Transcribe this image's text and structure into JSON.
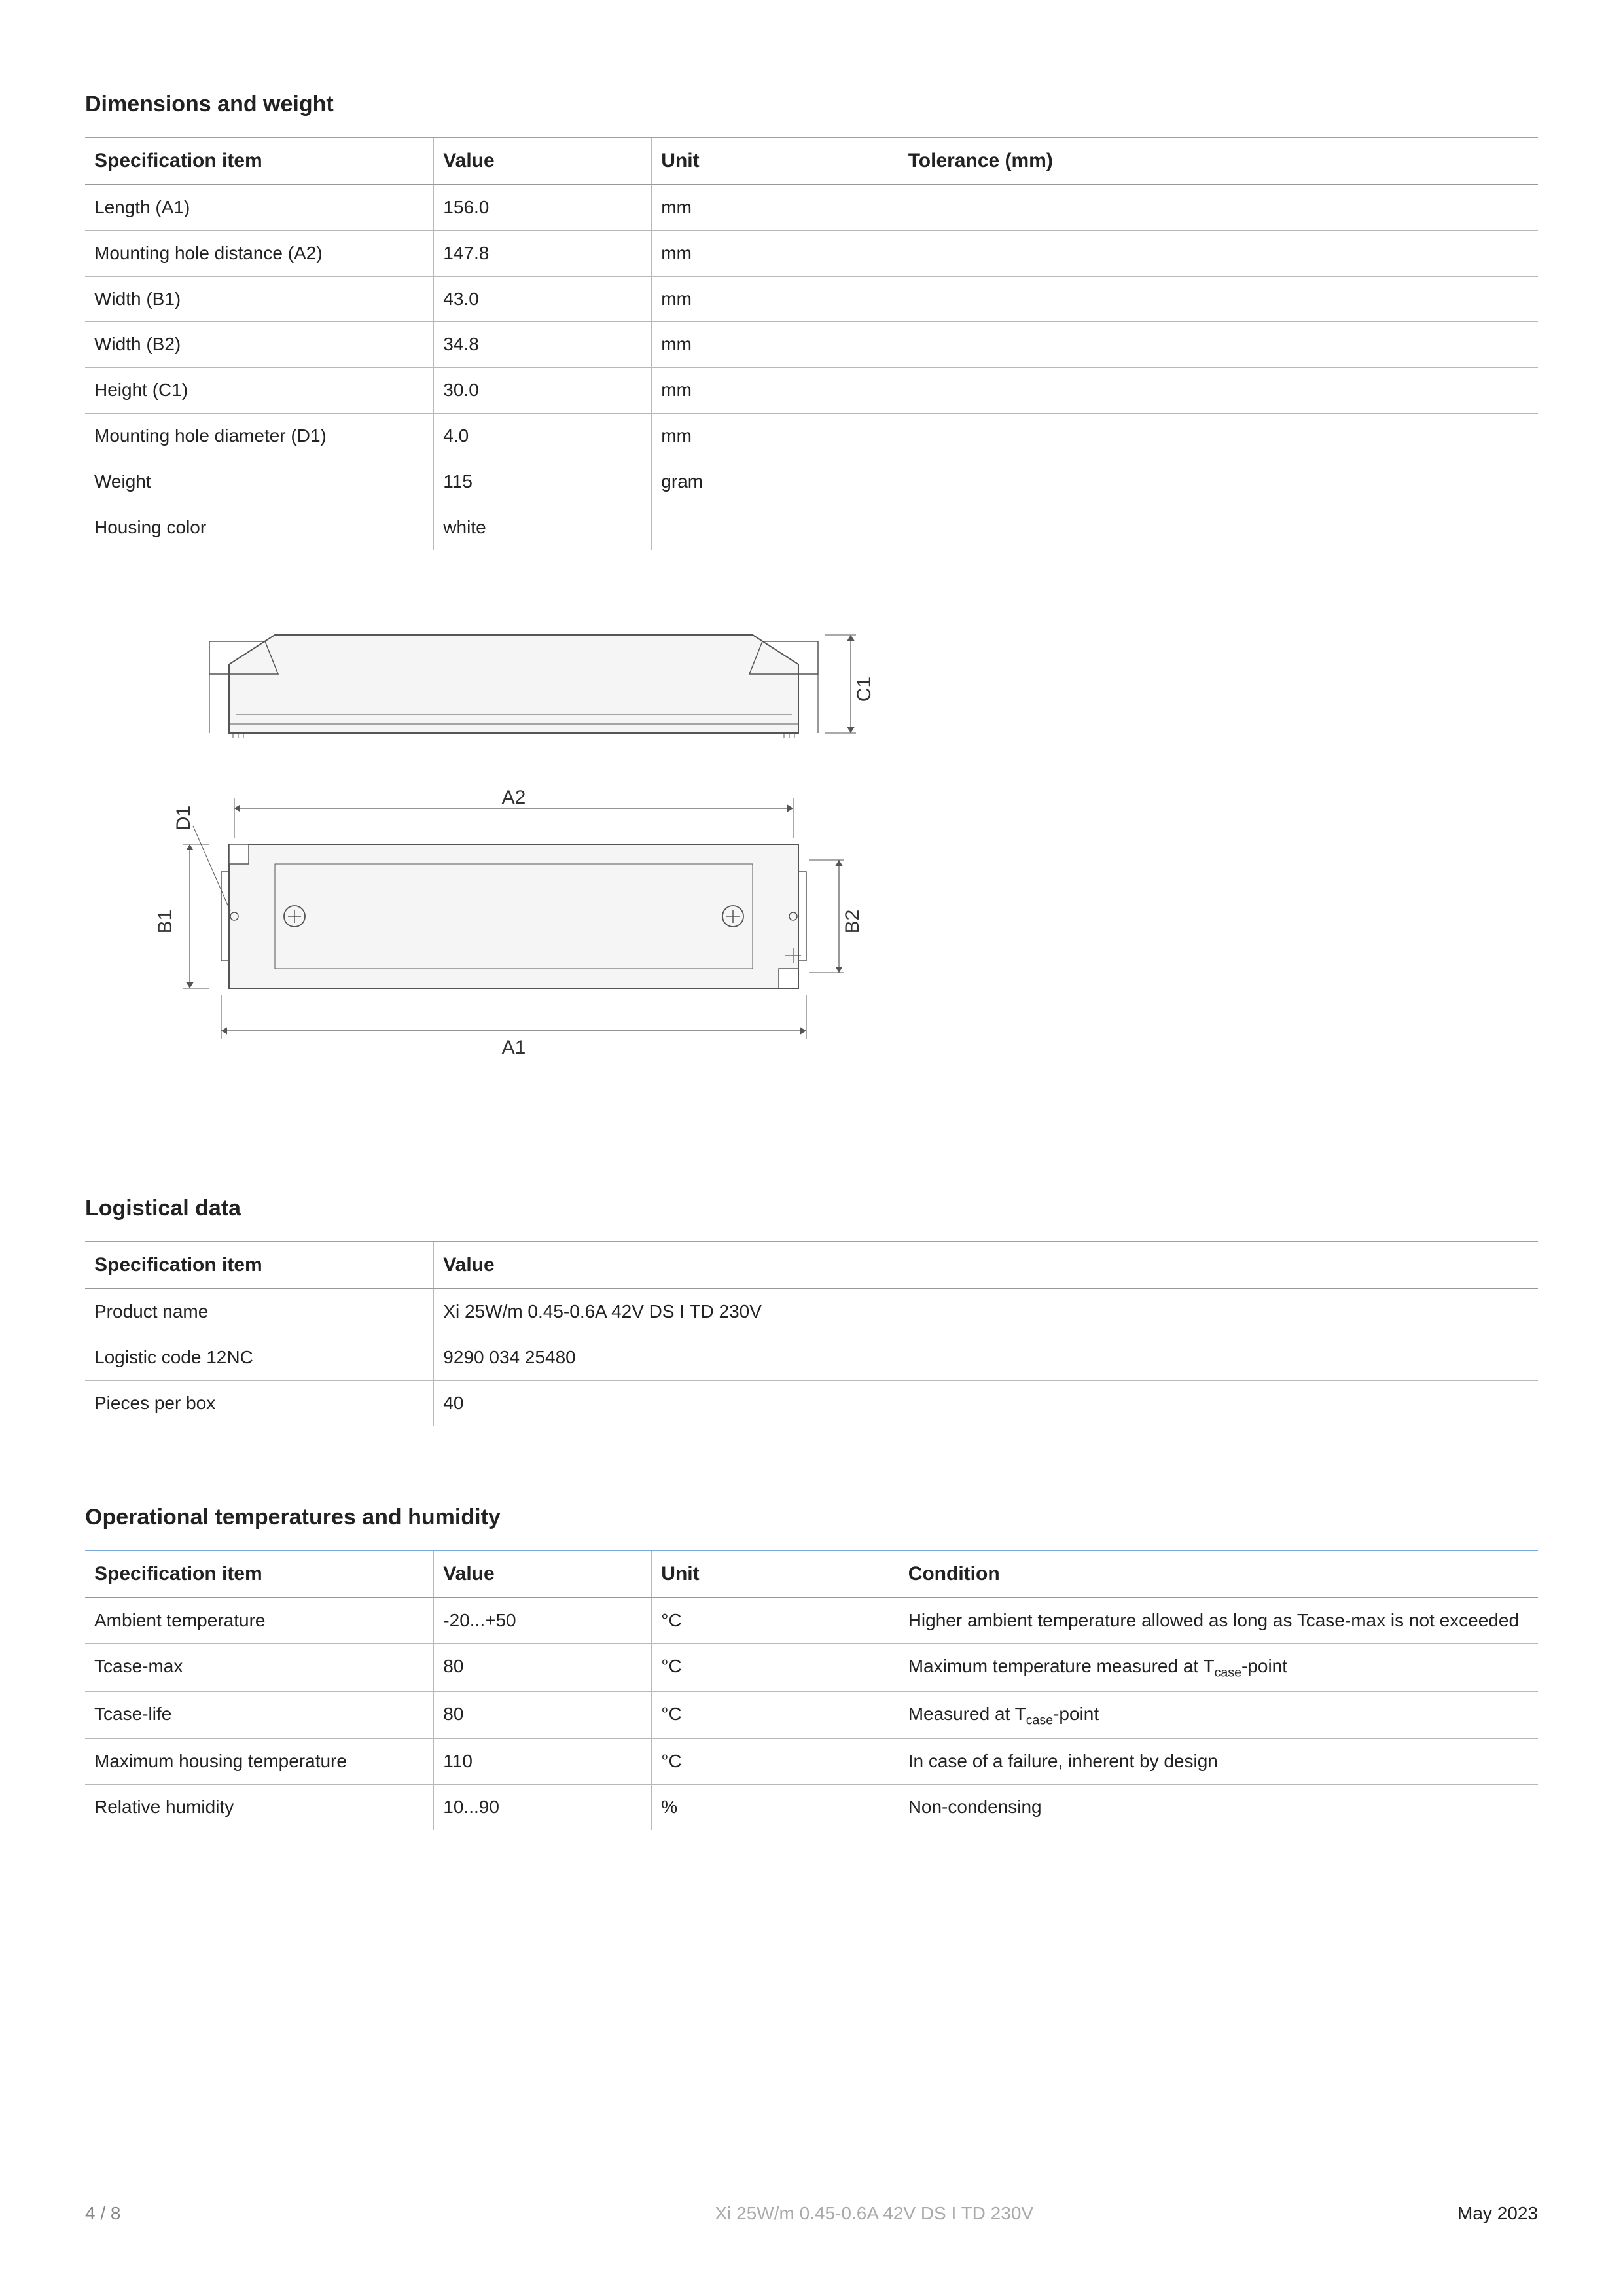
{
  "sections": {
    "dimensions": {
      "title": "Dimensions and weight",
      "columns": [
        "Specification item",
        "Value",
        "Unit",
        "Tolerance (mm)"
      ],
      "col_widths": [
        "24%",
        "15%",
        "17%",
        "44%"
      ],
      "rows": [
        [
          "Length (A1)",
          "156.0",
          "mm",
          ""
        ],
        [
          "Mounting hole distance (A2)",
          "147.8",
          "mm",
          ""
        ],
        [
          "Width (B1)",
          "43.0",
          "mm",
          ""
        ],
        [
          "Width (B2)",
          "34.8",
          "mm",
          ""
        ],
        [
          "Height (C1)",
          "30.0",
          "mm",
          ""
        ],
        [
          "Mounting hole diameter (D1)",
          "4.0",
          "mm",
          ""
        ],
        [
          "Weight",
          "115",
          "gram",
          ""
        ],
        [
          "Housing color",
          "white",
          "",
          ""
        ]
      ]
    },
    "logistical": {
      "title": "Logistical data",
      "columns": [
        "Specification item",
        "Value"
      ],
      "col_widths": [
        "24%",
        "76%"
      ],
      "rows": [
        [
          "Product name",
          "Xi 25W/m 0.45-0.6A 42V DS I TD 230V"
        ],
        [
          "Logistic code 12NC",
          "9290 034 25480"
        ],
        [
          "Pieces per box",
          "40"
        ]
      ]
    },
    "operational": {
      "title": "Operational temperatures and humidity",
      "columns": [
        "Specification item",
        "Value",
        "Unit",
        "Condition"
      ],
      "col_widths": [
        "24%",
        "15%",
        "17%",
        "44%"
      ],
      "rows": [
        [
          "Ambient temperature",
          "-20...+50",
          "°C",
          "Higher ambient temperature allowed as long as Tcase-max is not exceeded"
        ],
        [
          "Tcase-max",
          "80",
          "°C",
          "Maximum temperature measured at T<sub>case</sub>-point"
        ],
        [
          "Tcase-life",
          "80",
          "°C",
          "Measured at T<sub>case</sub>-point"
        ],
        [
          "Maximum housing temperature",
          "110",
          "°C",
          "In case of a failure, inherent by design"
        ],
        [
          "Relative humidity",
          "10...90",
          "%",
          "Non-condensing"
        ]
      ]
    }
  },
  "drawing": {
    "labels": {
      "A1": "A1",
      "A2": "A2",
      "B1": "B1",
      "B2": "B2",
      "C1": "C1",
      "D1": "D1"
    },
    "stroke": "#555555",
    "fill": "#f5f5f5",
    "text_color": "#333333",
    "font_size": 30
  },
  "footer": {
    "page": "4 / 8",
    "product": "Xi 25W/m 0.45-0.6A 42V DS I TD 230V",
    "date": "May 2023"
  },
  "colors": {
    "rule_top": "#7aa8d8",
    "heading": "#222222",
    "row_border": "#b8b8b8",
    "header_border": "#999999"
  }
}
